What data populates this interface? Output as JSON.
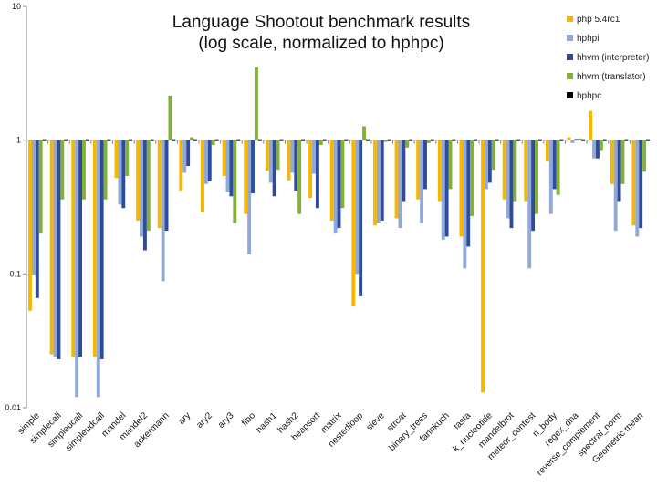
{
  "chart_data": {
    "type": "bar",
    "title": "Language Shootout benchmark results",
    "subtitle": "(log scale, normalized to hphpc)",
    "log_scale": true,
    "ylim": [
      0.01,
      10
    ],
    "y_ticks": [
      "10",
      "1",
      "0.1",
      "0.01"
    ],
    "y_tick_values": [
      10,
      1,
      0.1,
      0.01
    ],
    "baseline": 1,
    "grid": false,
    "legend_position": "top-right",
    "categories": [
      "simple",
      "simplecall",
      "simpleucall",
      "simpleudcall",
      "mandel",
      "mandel2",
      "ackermann",
      "ary",
      "ary2",
      "ary3",
      "fibo",
      "hash1",
      "hash2",
      "heapsort",
      "matrix",
      "nestedloop",
      "sieve",
      "strcat",
      "binary_trees",
      "fannkuch",
      "fasta",
      "k_nucleotide",
      "mandelbrot",
      "meteor_contest",
      "n_body",
      "regex_dna",
      "reverse_complement",
      "spectral_norm",
      "Geometric mean"
    ],
    "series": [
      {
        "name": "php 5.4rc1",
        "color": "#F5B700",
        "values": [
          0.053,
          0.025,
          0.024,
          0.024,
          0.52,
          0.25,
          0.22,
          0.42,
          0.29,
          0.54,
          0.28,
          0.59,
          0.5,
          0.37,
          0.25,
          0.057,
          0.23,
          0.26,
          0.36,
          0.35,
          0.19,
          0.013,
          0.36,
          0.35,
          0.7,
          1.05,
          1.65,
          0.47,
          0.23
        ]
      },
      {
        "name": "hphpi",
        "color": "#92A9D8",
        "values": [
          0.098,
          0.024,
          0.012,
          0.012,
          0.33,
          0.19,
          0.088,
          0.57,
          0.47,
          0.41,
          0.14,
          0.48,
          0.57,
          0.56,
          0.2,
          0.1,
          0.24,
          0.22,
          0.24,
          0.18,
          0.11,
          0.43,
          0.26,
          0.11,
          0.28,
          0.95,
          0.73,
          0.21,
          0.19
        ]
      },
      {
        "name": "hhvm (interpreter)",
        "color": "#2E4C9E",
        "values": [
          0.066,
          0.023,
          0.024,
          0.023,
          0.31,
          0.15,
          0.21,
          0.64,
          0.49,
          0.38,
          0.4,
          0.38,
          0.42,
          0.31,
          0.22,
          0.068,
          0.25,
          0.35,
          0.43,
          0.19,
          0.16,
          0.48,
          0.22,
          0.21,
          0.43,
          1.02,
          0.73,
          0.35,
          0.22
        ]
      },
      {
        "name": "hhvm (translator)",
        "color": "#84AF3A",
        "values": [
          0.2,
          0.36,
          0.36,
          0.36,
          0.54,
          0.21,
          2.15,
          1.05,
          0.92,
          0.24,
          3.5,
          0.6,
          0.28,
          0.92,
          0.31,
          1.27,
          0.97,
          0.88,
          0.95,
          0.43,
          0.27,
          0.6,
          0.35,
          0.28,
          0.39,
          1.03,
          0.83,
          0.47,
          0.58
        ]
      },
      {
        "name": "hphpc",
        "color": "#000000",
        "values": [
          1,
          1,
          1,
          1,
          1,
          1,
          1,
          1,
          1,
          1,
          1,
          1,
          1,
          1,
          1,
          1,
          1,
          1,
          1,
          1,
          1,
          1,
          1,
          1,
          1,
          1,
          1,
          1,
          1
        ]
      }
    ]
  }
}
